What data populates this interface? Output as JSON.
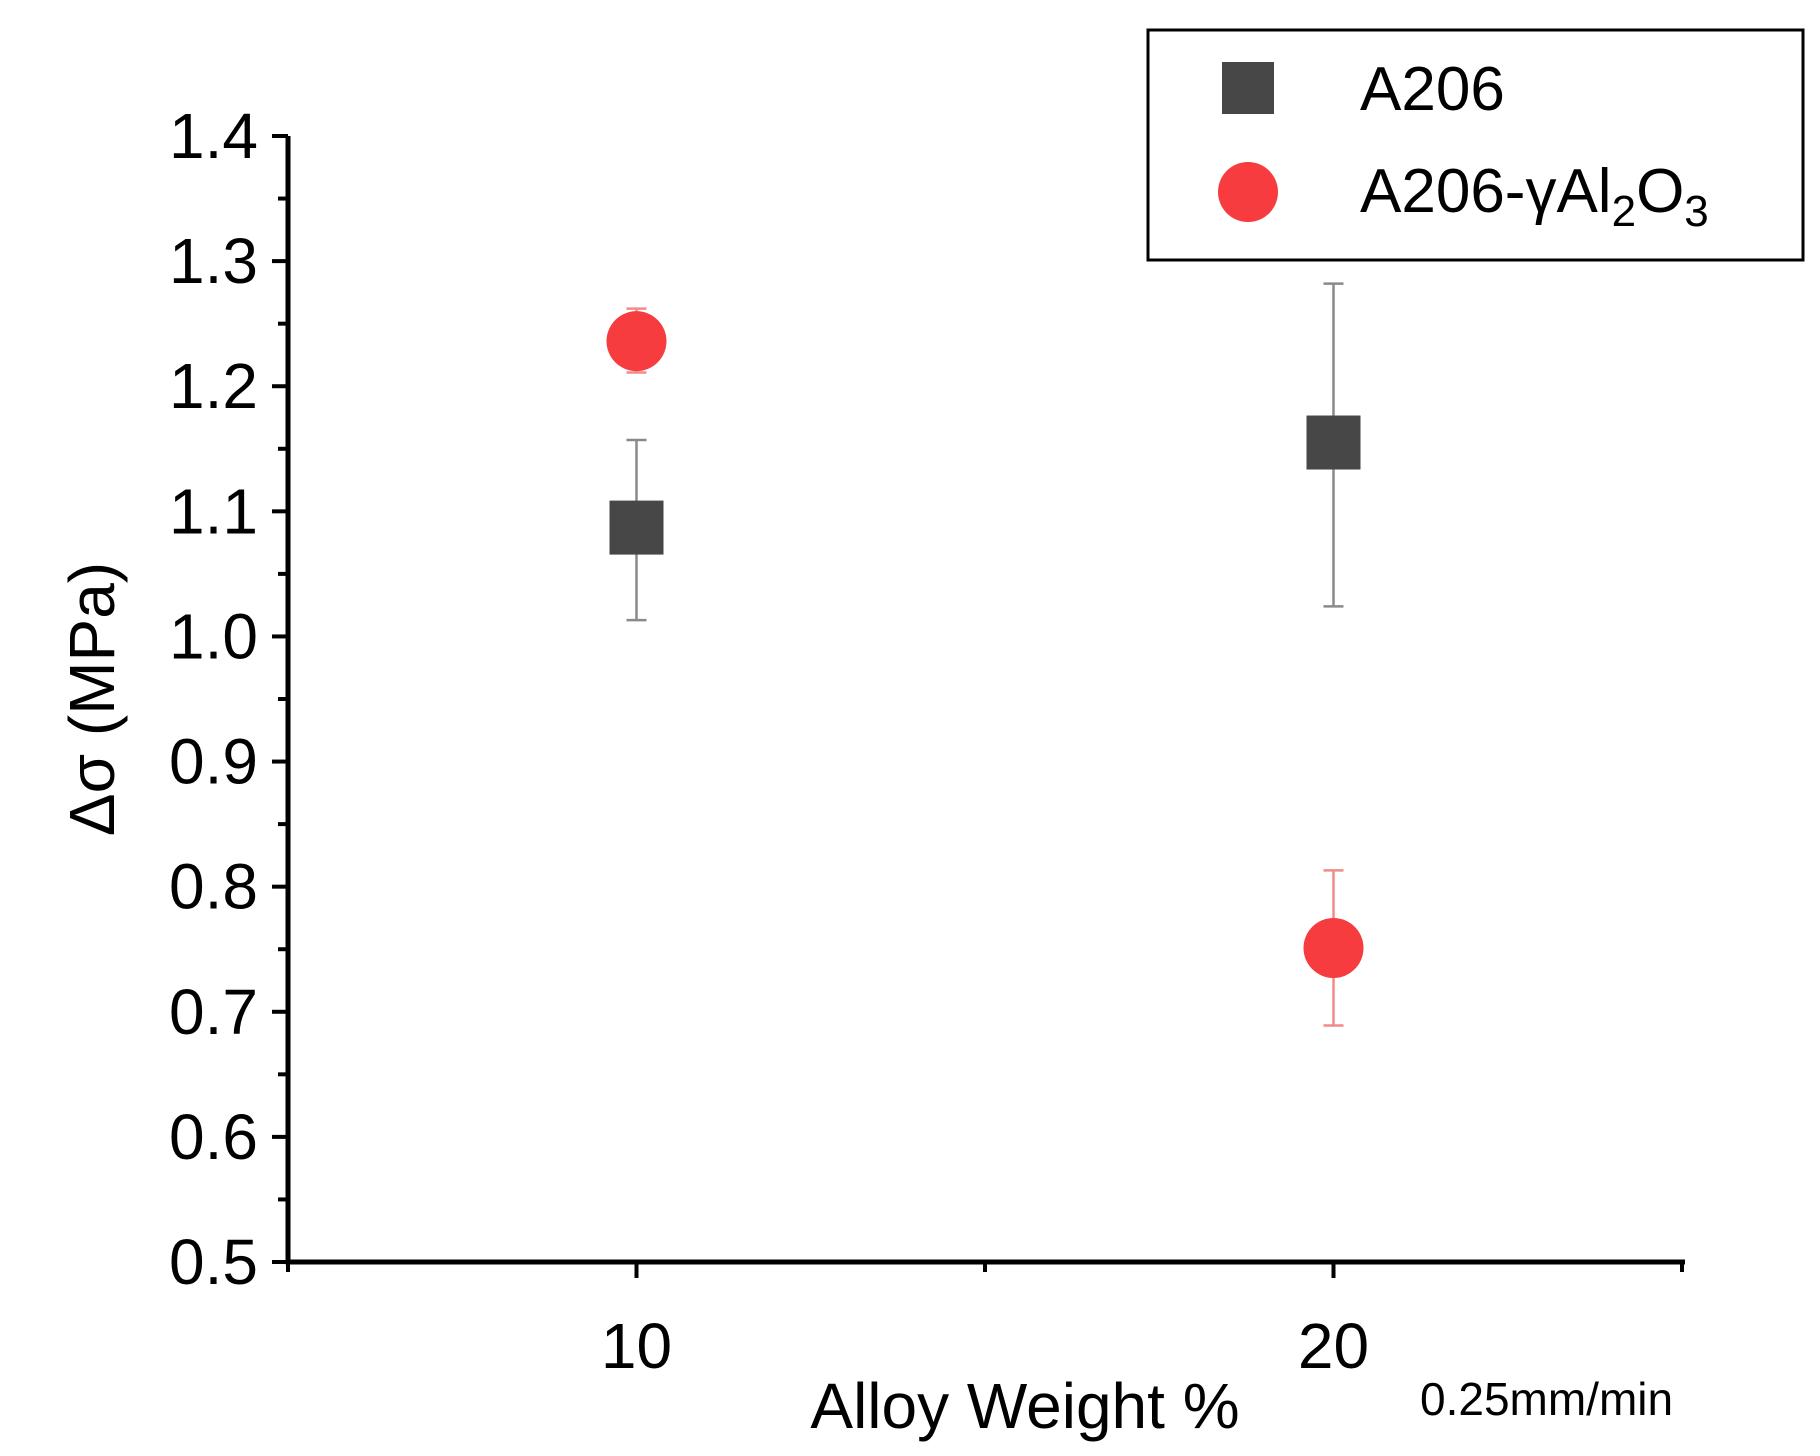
{
  "chart_data": {
    "type": "scatter",
    "title": "",
    "xlabel": "Alloy Weight %",
    "ylabel": "Δσ (MPa)",
    "xlim": [
      5,
      25
    ],
    "ylim": [
      0.5,
      1.4
    ],
    "x_ticks": [
      10,
      20
    ],
    "x_tick_labels": [
      "10",
      "20"
    ],
    "x_minor_ticks": [
      5,
      15,
      25
    ],
    "y_ticks": [
      0.5,
      0.6,
      0.7,
      0.8,
      0.9,
      1.0,
      1.1,
      1.2,
      1.3,
      1.4
    ],
    "y_tick_labels": [
      "0.5",
      "0.6",
      "0.7",
      "0.8",
      "0.9",
      "1.0",
      "1.1",
      "1.2",
      "1.3",
      "1.4"
    ],
    "annotation": "0.25mm/min",
    "legend_position": "top-right",
    "grid": false,
    "series": [
      {
        "name": "A206",
        "marker": "square",
        "color": "#474747",
        "error_color": "#8a8a8a",
        "points": [
          {
            "x": 10,
            "y": 1.087,
            "err_low": 1.013,
            "err_high": 1.157
          },
          {
            "x": 20,
            "y": 1.155,
            "err_low": 1.024,
            "err_high": 1.282
          }
        ]
      },
      {
        "name": "A206-γAl2O3",
        "marker": "circle",
        "color": "#f63c3e",
        "error_color": "#f08b8b",
        "points": [
          {
            "x": 10,
            "y": 1.236,
            "err_low": 1.211,
            "err_high": 1.262
          },
          {
            "x": 20,
            "y": 0.751,
            "err_low": 0.689,
            "err_high": 0.813
          }
        ]
      }
    ]
  },
  "legend": {
    "entries": [
      {
        "base": "A206",
        "prefix": "",
        "sub1": "",
        "mid": "",
        "sub2": ""
      },
      {
        "base": "",
        "prefix": "A206-γAl",
        "sub1": "2",
        "mid": "O",
        "sub2": "3"
      }
    ]
  }
}
